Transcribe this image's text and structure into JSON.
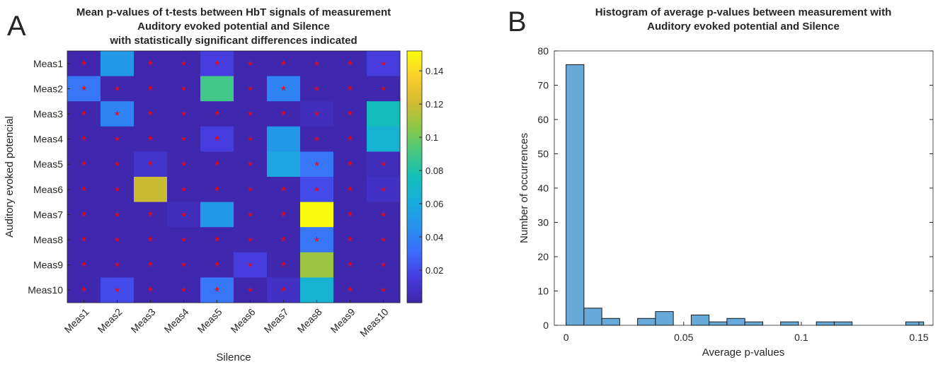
{
  "chart_data": [
    {
      "panel": "A",
      "type": "heatmap",
      "title": [
        "Mean p-values of t-tests between HbT signals of measurement",
        "Auditory evoked potential and Silence",
        "with statistically significant differences indicated"
      ],
      "xlabel": "Silence",
      "ylabel": "Auditory evoked potencial",
      "x_categories": [
        "Meas1",
        "Meas2",
        "Meas3",
        "Meas4",
        "Meas5",
        "Meas6",
        "Meas7",
        "Meas8",
        "Meas9",
        "Meas10"
      ],
      "y_categories": [
        "Meas1",
        "Meas2",
        "Meas3",
        "Meas4",
        "Meas5",
        "Meas6",
        "Meas7",
        "Meas8",
        "Meas9",
        "Meas10"
      ],
      "values": [
        [
          0.002,
          0.05,
          0.002,
          0.002,
          0.015,
          0.002,
          0.002,
          0.002,
          0.002,
          0.015
        ],
        [
          0.035,
          0.002,
          0.002,
          0.002,
          0.09,
          0.002,
          0.04,
          0.002,
          0.002,
          0.002
        ],
        [
          0.002,
          0.04,
          0.002,
          0.002,
          0.002,
          0.002,
          0.002,
          0.005,
          0.002,
          0.075
        ],
        [
          0.002,
          0.002,
          0.002,
          0.002,
          0.015,
          0.002,
          0.05,
          0.002,
          0.002,
          0.065
        ],
        [
          0.002,
          0.002,
          0.01,
          0.002,
          0.002,
          0.002,
          0.057,
          0.035,
          0.002,
          0.005
        ],
        [
          0.002,
          0.002,
          0.12,
          0.002,
          0.002,
          0.002,
          0.002,
          0.02,
          0.002,
          0.008
        ],
        [
          0.002,
          0.002,
          0.002,
          0.005,
          0.05,
          0.002,
          0.002,
          0.152,
          0.002,
          0.002
        ],
        [
          0.002,
          0.002,
          0.002,
          0.002,
          0.002,
          0.002,
          0.002,
          0.035,
          0.002,
          0.002
        ],
        [
          0.002,
          0.002,
          0.002,
          0.002,
          0.002,
          0.015,
          0.002,
          0.11,
          0.002,
          0.002
        ],
        [
          0.002,
          0.02,
          0.002,
          0.002,
          0.035,
          0.002,
          0.008,
          0.065,
          0.002,
          0.002
        ]
      ],
      "significant": [
        [
          1,
          0,
          1,
          1,
          1,
          1,
          1,
          1,
          1,
          1
        ],
        [
          1,
          1,
          1,
          1,
          0,
          1,
          1,
          1,
          1,
          1
        ],
        [
          1,
          1,
          1,
          1,
          1,
          1,
          1,
          1,
          1,
          0
        ],
        [
          1,
          1,
          1,
          1,
          1,
          1,
          0,
          1,
          1,
          0
        ],
        [
          1,
          1,
          1,
          1,
          1,
          1,
          0,
          1,
          1,
          1
        ],
        [
          1,
          1,
          0,
          1,
          1,
          1,
          1,
          1,
          1,
          1
        ],
        [
          1,
          1,
          1,
          1,
          0,
          1,
          1,
          0,
          1,
          1
        ],
        [
          1,
          1,
          1,
          1,
          1,
          1,
          1,
          1,
          1,
          1
        ],
        [
          1,
          1,
          1,
          1,
          1,
          1,
          1,
          0,
          1,
          1
        ],
        [
          1,
          1,
          1,
          1,
          1,
          1,
          1,
          0,
          1,
          1
        ]
      ],
      "marker": "*",
      "marker_color": "#ff0000",
      "colorbar": {
        "range": [
          0.0004,
          0.152
        ],
        "ticks": [
          0.02,
          0.04,
          0.06,
          0.08,
          0.1,
          0.12,
          0.14
        ],
        "tick_labels": [
          "0.02",
          "0.04",
          "0.06",
          "0.08",
          "0.1",
          "0.12",
          "0.14"
        ],
        "colormap": "parula"
      }
    },
    {
      "panel": "B",
      "type": "bar",
      "title": [
        "Histogram of average p-values between measurement with",
        "Auditory evoked potential and Silence"
      ],
      "xlabel": "Average p-values",
      "ylabel": "Number of occurrences",
      "bin_start": 0,
      "bin_width": 0.0076,
      "counts": [
        76,
        5,
        2,
        0,
        2,
        4,
        0,
        3,
        1,
        2,
        1,
        0,
        1,
        0,
        1,
        1,
        0,
        0,
        0,
        1
      ],
      "xlim": [
        -0.005,
        0.156
      ],
      "ylim": [
        0,
        80
      ],
      "xticks": [
        0,
        0.05,
        0.1,
        0.15
      ],
      "xtick_labels": [
        "0",
        "0.05",
        "0.1",
        "0.15"
      ],
      "yticks": [
        0,
        10,
        20,
        30,
        40,
        50,
        60,
        70,
        80
      ],
      "ytick_labels": [
        "0",
        "10",
        "20",
        "30",
        "40",
        "50",
        "60",
        "70",
        "80"
      ],
      "bar_color": "#67a9d8"
    }
  ],
  "panel_labels": [
    "A",
    "B"
  ]
}
